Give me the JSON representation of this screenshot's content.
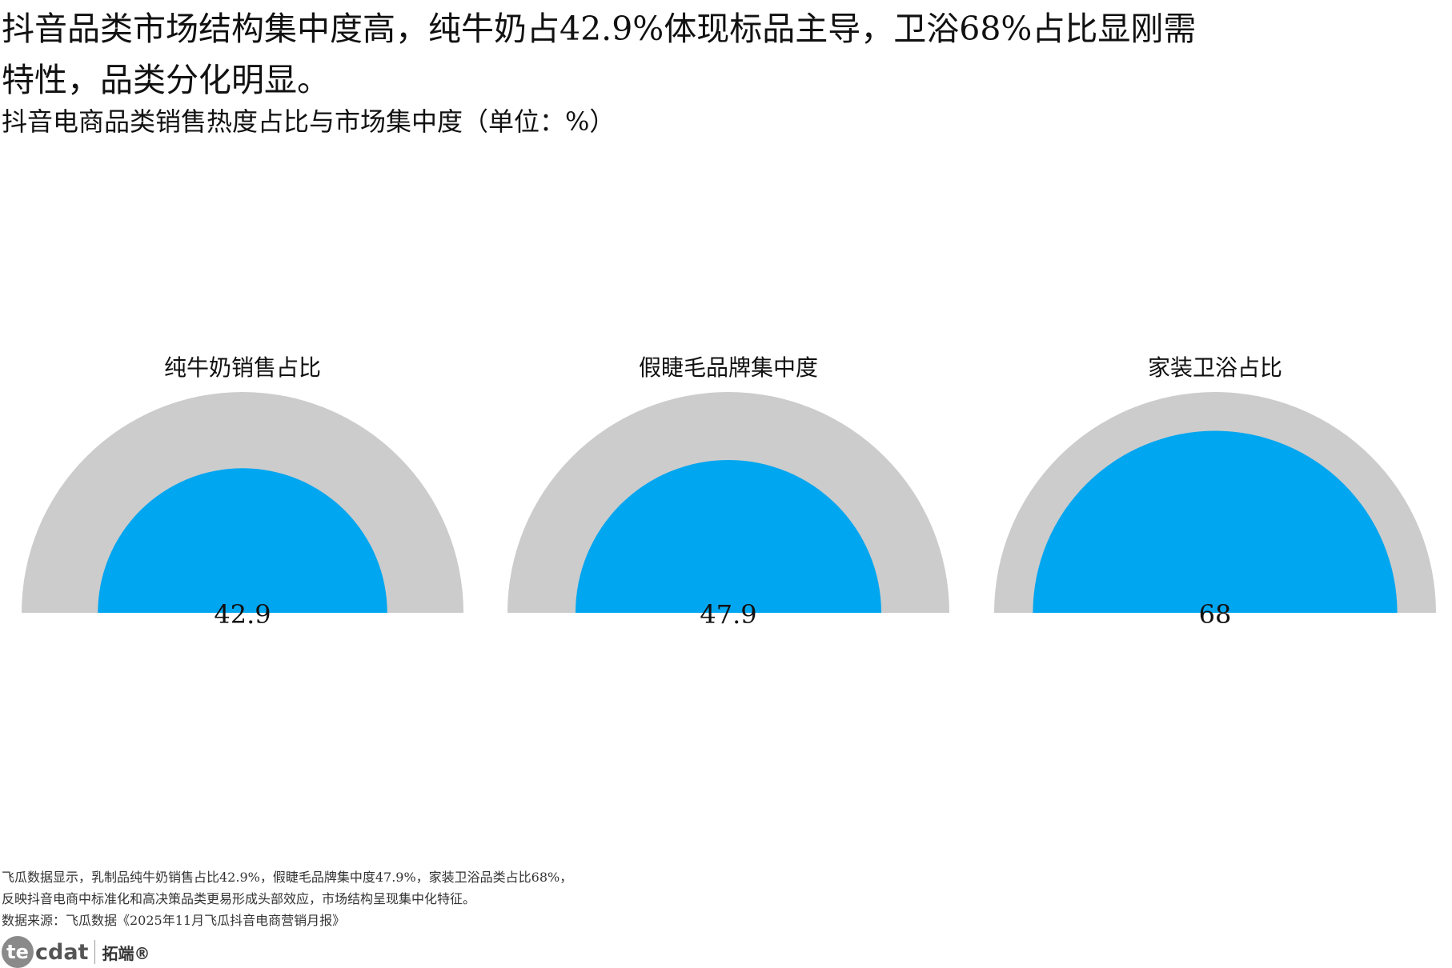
{
  "headline": "抖音品类市场结构集中度高，纯牛奶占42.9%体现标品主导，卫浴68%占比显刚需特性，品类分化明显。",
  "subtitle": "抖音电商品类销售热度占比与市场集中度（单位：%）",
  "colors": {
    "track": "#cccccc",
    "fill": "#00a6f0",
    "text": "#111111"
  },
  "chart_data": [
    {
      "type": "gauge",
      "title": "纯牛奶销售占比",
      "value": 42.9,
      "value_label": "42.9",
      "max": 100
    },
    {
      "type": "gauge",
      "title": "假睫毛品牌集中度",
      "value": 47.9,
      "value_label": "47.9",
      "max": 100
    },
    {
      "type": "gauge",
      "title": "家装卫浴占比",
      "value": 68,
      "value_label": "68",
      "max": 100
    }
  ],
  "footer": {
    "line1": "飞瓜数据显示，乳制品纯牛奶销售占比42.9%，假睫毛品牌集中度47.9%，家装卫浴品类占比68%，",
    "line2": "反映抖音电商中标准化和高决策品类更易形成头部效应，市场结构呈现集中化特征。",
    "source": "数据来源：飞瓜数据《2025年11月飞瓜抖音电商营销月报》"
  },
  "logo": {
    "brand_circle": "te",
    "brand_rest": "cdat",
    "brand_cn": "拓端®"
  }
}
